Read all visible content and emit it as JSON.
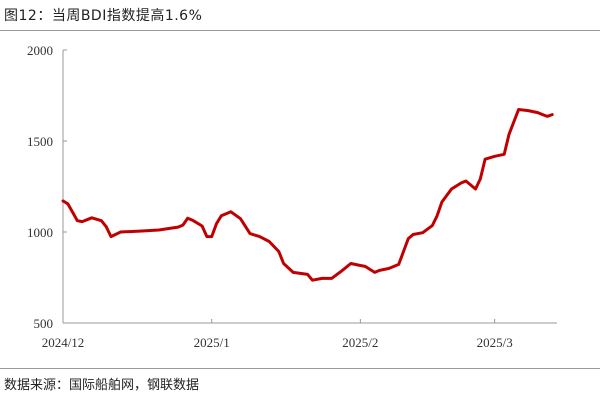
{
  "header": {
    "title": "图12：当周BDI指数提高1.6%"
  },
  "footer": {
    "source": "数据来源：国际船舶网，钢联数据"
  },
  "colors": {
    "line": "#c00000",
    "axis": "#999999"
  },
  "chart_data": {
    "type": "line",
    "title": "",
    "xlabel": "",
    "ylabel": "",
    "ylim": [
      500,
      2000
    ],
    "xlim": [
      "2024-12-01",
      "2025-03-14"
    ],
    "yticks": [
      500,
      1000,
      1500,
      2000
    ],
    "ytick_labels": [
      "500",
      "1000",
      "1500",
      "2000"
    ],
    "xticks": [
      "2024-12-01",
      "2025-01-01",
      "2025-02-01",
      "2025-03-01"
    ],
    "xtick_labels": [
      "2024/12",
      "2025/1",
      "2025/2",
      "2025/3"
    ],
    "grid": false,
    "legend": "none",
    "series": [
      {
        "x": [
          "2024-12-01",
          "2024-12-02",
          "2024-12-04",
          "2024-12-05",
          "2024-12-07",
          "2024-12-09",
          "2024-12-10",
          "2024-12-11",
          "2024-12-13",
          "2024-12-17",
          "2024-12-21",
          "2024-12-25",
          "2024-12-26",
          "2024-12-27",
          "2024-12-28",
          "2024-12-30",
          "2024-12-31",
          "2025-01-01",
          "2025-01-02",
          "2025-01-03",
          "2025-01-05",
          "2025-01-07",
          "2025-01-09",
          "2025-01-11",
          "2025-01-13",
          "2025-01-15",
          "2025-01-16",
          "2025-01-18",
          "2025-01-21",
          "2025-01-22",
          "2025-01-24",
          "2025-01-26",
          "2025-01-28",
          "2025-01-30",
          "2025-02-01",
          "2025-02-02",
          "2025-02-04",
          "2025-02-05",
          "2025-02-07",
          "2025-02-09",
          "2025-02-10",
          "2025-02-11",
          "2025-02-12",
          "2025-02-14",
          "2025-02-16",
          "2025-02-17",
          "2025-02-18",
          "2025-02-20",
          "2025-02-22",
          "2025-02-23",
          "2025-02-25",
          "2025-02-26",
          "2025-02-27",
          "2025-03-01",
          "2025-03-03",
          "2025-03-04",
          "2025-03-06",
          "2025-03-08",
          "2025-03-10",
          "2025-03-11",
          "2025-03-12",
          "2025-03-13"
        ],
        "values": [
          1171,
          1155,
          1062,
          1057,
          1078,
          1062,
          1029,
          975,
          1000,
          1005,
          1011,
          1027,
          1038,
          1076,
          1065,
          1033,
          975,
          975,
          1046,
          1089,
          1111,
          1073,
          991,
          975,
          948,
          893,
          827,
          778,
          767,
          735,
          745,
          745,
          784,
          827,
          816,
          811,
          778,
          789,
          800,
          822,
          893,
          964,
          986,
          996,
          1035,
          1089,
          1165,
          1236,
          1269,
          1280,
          1236,
          1291,
          1400,
          1416,
          1427,
          1536,
          1673,
          1667,
          1656,
          1645,
          1635,
          1645
        ]
      }
    ]
  }
}
